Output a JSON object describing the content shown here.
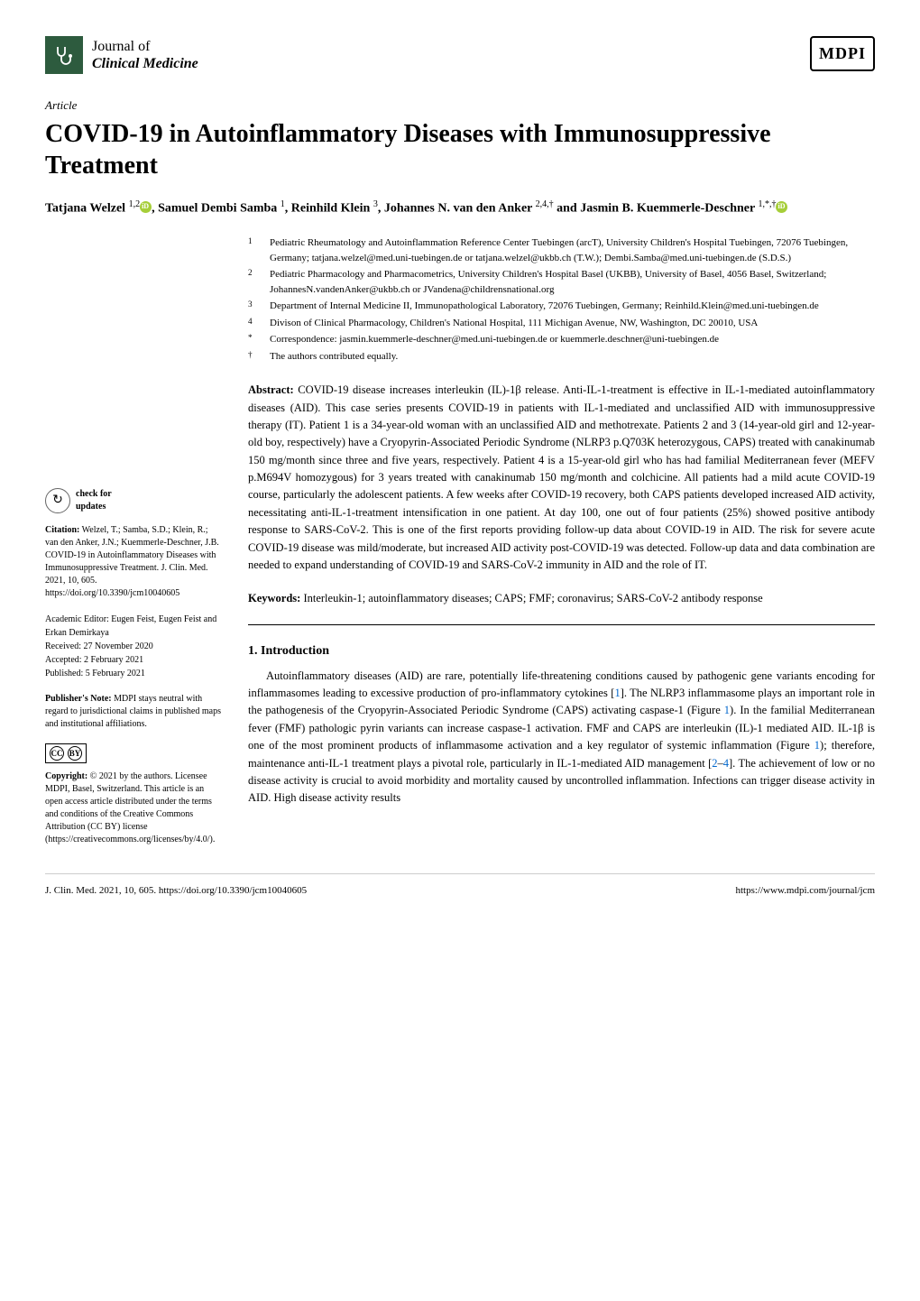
{
  "journal": {
    "line1": "Journal of",
    "line2": "Clinical Medicine"
  },
  "publisher_logo": "MDPI",
  "article_type": "Article",
  "title": "COVID-19 in Autoinflammatory Diseases with Immunosuppressive Treatment",
  "authors_html": "Tatjana Welzel <sup>1,2</sup><span class=\"orcid\"></span>, Samuel Dembi Samba <sup>1</sup>, Reinhild Klein <sup>3</sup>, Johannes N. van den Anker <sup>2,4,†</sup> and Jasmin B. Kuemmerle-Deschner <sup>1,*,†</sup><span class=\"orcid\"></span>",
  "affiliations": [
    {
      "n": "1",
      "text": "Pediatric Rheumatology and Autoinflammation Reference Center Tuebingen (arcT), University Children's Hospital Tuebingen, 72076 Tuebingen, Germany; tatjana.welzel@med.uni-tuebingen.de or tatjana.welzel@ukbb.ch (T.W.); Dembi.Samba@med.uni-tuebingen.de (S.D.S.)"
    },
    {
      "n": "2",
      "text": "Pediatric Pharmacology and Pharmacometrics, University Children's Hospital Basel (UKBB), University of Basel, 4056 Basel, Switzerland; JohannesN.vandenAnker@ukbb.ch or JVandena@childrensnational.org"
    },
    {
      "n": "3",
      "text": "Department of Internal Medicine II, Immunopathological Laboratory, 72076 Tuebingen, Germany; Reinhild.Klein@med.uni-tuebingen.de"
    },
    {
      "n": "4",
      "text": "Divison of Clinical Pharmacology, Children's National Hospital, 111 Michigan Avenue, NW, Washington, DC 20010, USA"
    },
    {
      "n": "*",
      "text": "Correspondence: jasmin.kuemmerle-deschner@med.uni-tuebingen.de or kuemmerle.deschner@uni-tuebingen.de"
    },
    {
      "n": "†",
      "text": "The authors contributed equally."
    }
  ],
  "abstract_label": "Abstract:",
  "abstract": "COVID-19 disease increases interleukin (IL)-1β release. Anti-IL-1-treatment is effective in IL-1-mediated autoinflammatory diseases (AID). This case series presents COVID-19 in patients with IL-1-mediated and unclassified AID with immunosuppressive therapy (IT). Patient 1 is a 34-year-old woman with an unclassified AID and methotrexate. Patients 2 and 3 (14-year-old girl and 12-year-old boy, respectively) have a Cryopyrin-Associated Periodic Syndrome (NLRP3 p.Q703K heterozygous, CAPS) treated with canakinumab 150 mg/month since three and five years, respectively. Patient 4 is a 15-year-old girl who has had familial Mediterranean fever (MEFV p.M694V homozygous) for 3 years treated with canakinumab 150 mg/month and colchicine. All patients had a mild acute COVID-19 course, particularly the adolescent patients. A few weeks after COVID-19 recovery, both CAPS patients developed increased AID activity, necessitating anti-IL-1-treatment intensification in one patient. At day 100, one out of four patients (25%) showed positive antibody response to SARS-CoV-2. This is one of the first reports providing follow-up data about COVID-19 in AID. The risk for severe acute COVID-19 disease was mild/moderate, but increased AID activity post-COVID-19 was detected. Follow-up data and data combination are needed to expand understanding of COVID-19 and SARS-CoV-2 immunity in AID and the role of IT.",
  "keywords_label": "Keywords:",
  "keywords": "Interleukin-1; autoinflammatory diseases; CAPS; FMF; coronavirus; SARS-CoV-2 antibody response",
  "section_heading": "1. Introduction",
  "intro_html": "Autoinflammatory diseases (AID) are rare, potentially life-threatening conditions caused by pathogenic gene variants encoding for inflammasomes leading to excessive production of pro-inflammatory cytokines [<span class=\"ref-link\">1</span>]. The NLRP3 inflammasome plays an important role in the pathogenesis of the Cryopyrin-Associated Periodic Syndrome (CAPS) activating caspase-1 (Figure <span class=\"ref-link\">1</span>). In the familial Mediterranean fever (FMF) pathologic pyrin variants can increase caspase-1 activation. FMF and CAPS are interleukin (IL)-1 mediated AID. IL-1β is one of the most prominent products of inflammasome activation and a key regulator of systemic inflammation (Figure <span class=\"ref-link\">1</span>); therefore, maintenance anti-IL-1 treatment plays a pivotal role, particularly in IL-1-mediated AID management [<span class=\"ref-link\">2</span>–<span class=\"ref-link\">4</span>]. The achievement of low or no disease activity is crucial to avoid morbidity and mortality caused by uncontrolled inflammation. Infections can trigger disease activity in AID. High disease activity results",
  "sidebar": {
    "updates_text": "check for\nupdates",
    "citation_label": "Citation:",
    "citation": "Welzel, T.; Samba, S.D.; Klein, R.; van den Anker, J.N.; Kuemmerle-Deschner, J.B. COVID-19 in Autoinflammatory Diseases with Immunosuppressive Treatment. J. Clin. Med. 2021, 10, 605. https://doi.org/10.3390/jcm10040605",
    "editor": "Academic Editor: Eugen Feist, Eugen Feist and Erkan Demirkaya",
    "received": "Received: 27 November 2020",
    "accepted": "Accepted: 2 February 2021",
    "published": "Published: 5 February 2021",
    "publishers_note_label": "Publisher's Note:",
    "publishers_note": "MDPI stays neutral with regard to jurisdictional claims in published maps and institutional affiliations.",
    "copyright_label": "Copyright:",
    "copyright": "© 2021 by the authors. Licensee MDPI, Basel, Switzerland. This article is an open access article distributed under the terms and conditions of the Creative Commons Attribution (CC BY) license (https://creativecommons.org/licenses/by/4.0/)."
  },
  "footer": {
    "left": "J. Clin. Med. 2021, 10, 605. https://doi.org/10.3390/jcm10040605",
    "right": "https://www.mdpi.com/journal/jcm"
  },
  "colors": {
    "journal_icon_bg": "#2d5b3e",
    "orcid_bg": "#a6ce39",
    "ref_link": "#0066cc"
  }
}
